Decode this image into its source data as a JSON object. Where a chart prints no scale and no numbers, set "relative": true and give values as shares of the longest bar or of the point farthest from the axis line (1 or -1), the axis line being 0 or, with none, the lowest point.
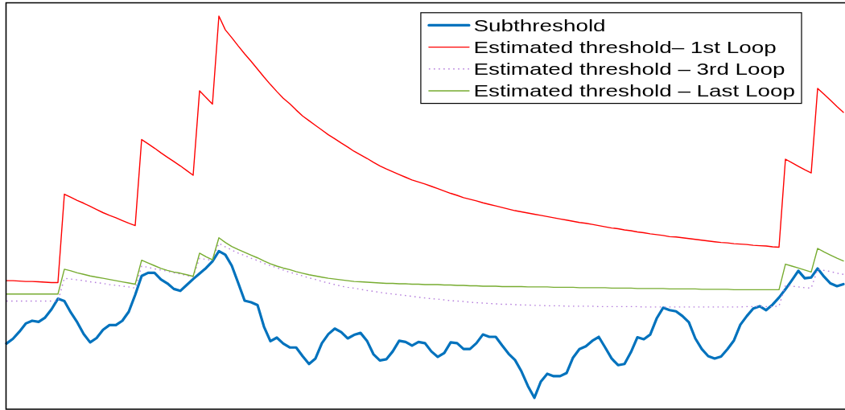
{
  "chart_data": {
    "type": "line",
    "relative": true,
    "legend": "top right",
    "categories": [
      null,
      null,
      null,
      null,
      null,
      null,
      null,
      null,
      null,
      null,
      null,
      null,
      null,
      null,
      null,
      null,
      null,
      null,
      null,
      null,
      null,
      null,
      null,
      null,
      null,
      null,
      null,
      null,
      null,
      null,
      null,
      null,
      null,
      null,
      null,
      null,
      null,
      null,
      null,
      null,
      null,
      null,
      null,
      null,
      null,
      null,
      null,
      null,
      null,
      null,
      null,
      null,
      null,
      null,
      null,
      null,
      null,
      null,
      null,
      null,
      null,
      null,
      null,
      null,
      null,
      null,
      null,
      null,
      null,
      null,
      null,
      null,
      null,
      null,
      null,
      null,
      null,
      null,
      null,
      null,
      null,
      null,
      null,
      null,
      null,
      null,
      null,
      null,
      null,
      null,
      null,
      null,
      null,
      null,
      null,
      null,
      null,
      null,
      null,
      null,
      null,
      null,
      null,
      null,
      null,
      null,
      null,
      null,
      null,
      null,
      null,
      null,
      null,
      null,
      null,
      null,
      null,
      null,
      null,
      null,
      null,
      null,
      null,
      null,
      null,
      null,
      null,
      null,
      null,
      null,
      null
    ],
    "series": [
      {
        "name": "Subthreshold",
        "color": "#0072bd",
        "line_style": "solid",
        "values": [
          0.167,
          0.179,
          0.197,
          0.218,
          0.225,
          0.222,
          0.233,
          0.254,
          0.281,
          0.275,
          0.246,
          0.221,
          0.191,
          0.17,
          0.181,
          0.202,
          0.214,
          0.214,
          0.225,
          0.248,
          0.291,
          0.339,
          0.347,
          0.347,
          0.33,
          0.32,
          0.306,
          0.301,
          0.316,
          0.331,
          0.345,
          0.359,
          0.376,
          0.402,
          0.393,
          0.365,
          0.321,
          0.276,
          0.272,
          0.265,
          0.21,
          0.173,
          0.182,
          0.167,
          0.157,
          0.157,
          0.135,
          0.115,
          0.129,
          0.168,
          0.191,
          0.205,
          0.196,
          0.18,
          0.189,
          0.194,
          0.174,
          0.14,
          0.124,
          0.127,
          0.147,
          0.174,
          0.171,
          0.162,
          0.171,
          0.168,
          0.147,
          0.133,
          0.143,
          0.17,
          0.168,
          0.153,
          0.153,
          0.168,
          0.19,
          0.184,
          0.184,
          0.162,
          0.141,
          0.125,
          0.096,
          0.059,
          0.029,
          0.07,
          0.09,
          0.084,
          0.084,
          0.092,
          0.131,
          0.153,
          0.16,
          0.174,
          0.184,
          0.157,
          0.129,
          0.112,
          0.115,
          0.145,
          0.183,
          0.178,
          0.19,
          0.231,
          0.258,
          0.252,
          0.249,
          0.237,
          0.221,
          0.18,
          0.153,
          0.135,
          0.129,
          0.134,
          0.153,
          0.175,
          0.215,
          0.237,
          0.256,
          0.262,
          0.252,
          0.266,
          0.284,
          0.305,
          0.328,
          0.352,
          0.333,
          0.335,
          0.358,
          0.337,
          0.32,
          0.313,
          0.318
        ]
      },
      {
        "name": "Estimated threshold– 1st Loop",
        "color": "#ff0000",
        "line_style": "solid",
        "values": [
          0.327,
          0.327,
          0.326,
          0.325,
          0.325,
          0.324,
          0.323,
          0.322,
          0.322,
          0.547,
          0.539,
          0.531,
          0.524,
          0.516,
          0.508,
          0.5,
          0.493,
          0.487,
          0.48,
          0.473,
          0.467,
          0.686,
          0.675,
          0.664,
          0.652,
          0.641,
          0.63,
          0.619,
          0.607,
          0.595,
          0.81,
          0.793,
          0.776,
          1,
          0.965,
          0.945,
          0.924,
          0.904,
          0.885,
          0.865,
          0.845,
          0.826,
          0.808,
          0.791,
          0.777,
          0.761,
          0.746,
          0.734,
          0.722,
          0.71,
          0.698,
          0.688,
          0.677,
          0.667,
          0.656,
          0.647,
          0.638,
          0.628,
          0.619,
          0.611,
          0.604,
          0.597,
          0.59,
          0.583,
          0.578,
          0.573,
          0.567,
          0.561,
          0.555,
          0.549,
          0.544,
          0.538,
          0.534,
          0.53,
          0.525,
          0.521,
          0.517,
          0.513,
          0.509,
          0.505,
          0.502,
          0.499,
          0.496,
          0.493,
          0.49,
          0.487,
          0.484,
          0.481,
          0.478,
          0.475,
          0.473,
          0.47,
          0.467,
          0.464,
          0.461,
          0.459,
          0.456,
          0.454,
          0.451,
          0.449,
          0.446,
          0.444,
          0.442,
          0.439,
          0.438,
          0.436,
          0.434,
          0.432,
          0.43,
          0.428,
          0.426,
          0.424,
          0.423,
          0.421,
          0.42,
          0.419,
          0.417,
          0.416,
          0.415,
          0.413,
          0.412,
          0.636,
          0.627,
          0.618,
          0.609,
          0.601,
          0.816,
          0.801,
          0.786,
          0.77,
          0.755
        ]
      },
      {
        "name": "Estimated threshold – 3rd Loop",
        "color": "#b57edc",
        "line_style": "dotted",
        "values": [
          0.275,
          0.275,
          0.275,
          0.275,
          0.275,
          0.275,
          0.275,
          0.275,
          0.275,
          0.333,
          0.331,
          0.329,
          0.327,
          0.324,
          0.322,
          0.32,
          0.317,
          0.315,
          0.313,
          0.311,
          0.308,
          0.364,
          0.361,
          0.357,
          0.354,
          0.351,
          0.347,
          0.344,
          0.34,
          0.337,
          0.384,
          0.381,
          0.379,
          0.422,
          0.413,
          0.405,
          0.397,
          0.391,
          0.384,
          0.378,
          0.371,
          0.365,
          0.36,
          0.354,
          0.348,
          0.344,
          0.339,
          0.334,
          0.33,
          0.325,
          0.321,
          0.317,
          0.313,
          0.31,
          0.308,
          0.305,
          0.302,
          0.3,
          0.297,
          0.295,
          0.293,
          0.291,
          0.289,
          0.287,
          0.285,
          0.283,
          0.281,
          0.28,
          0.278,
          0.276,
          0.275,
          0.274,
          0.272,
          0.271,
          0.27,
          0.269,
          0.268,
          0.267,
          0.267,
          0.266,
          0.265,
          0.265,
          0.264,
          0.264,
          0.263,
          0.263,
          0.263,
          0.262,
          0.262,
          0.262,
          0.262,
          0.262,
          0.261,
          0.261,
          0.261,
          0.261,
          0.261,
          0.261,
          0.261,
          0.26,
          0.26,
          0.26,
          0.26,
          0.26,
          0.26,
          0.26,
          0.26,
          0.26,
          0.26,
          0.26,
          0.26,
          0.26,
          0.26,
          0.26,
          0.26,
          0.261,
          0.261,
          0.261,
          0.261,
          0.261,
          0.262,
          0.315,
          0.313,
          0.311,
          0.309,
          0.308,
          0.356,
          0.353,
          0.35,
          0.346,
          0.343
        ]
      },
      {
        "name": "Estimated threshold – Last Loop",
        "color": "#77ac30",
        "line_style": "solid",
        "values": [
          0.293,
          0.293,
          0.293,
          0.293,
          0.293,
          0.293,
          0.293,
          0.293,
          0.293,
          0.356,
          0.352,
          0.347,
          0.343,
          0.339,
          0.336,
          0.333,
          0.33,
          0.327,
          0.324,
          0.321,
          0.318,
          0.379,
          0.372,
          0.365,
          0.358,
          0.353,
          0.349,
          0.346,
          0.342,
          0.338,
          0.397,
          0.388,
          0.38,
          0.436,
          0.424,
          0.414,
          0.406,
          0.399,
          0.392,
          0.385,
          0.377,
          0.37,
          0.364,
          0.359,
          0.355,
          0.35,
          0.346,
          0.342,
          0.339,
          0.336,
          0.333,
          0.331,
          0.329,
          0.327,
          0.325,
          0.324,
          0.323,
          0.322,
          0.321,
          0.32,
          0.32,
          0.319,
          0.319,
          0.318,
          0.318,
          0.317,
          0.317,
          0.317,
          0.316,
          0.316,
          0.315,
          0.315,
          0.314,
          0.314,
          0.313,
          0.313,
          0.313,
          0.312,
          0.312,
          0.312,
          0.312,
          0.311,
          0.311,
          0.311,
          0.311,
          0.31,
          0.31,
          0.31,
          0.31,
          0.309,
          0.309,
          0.309,
          0.309,
          0.309,
          0.308,
          0.308,
          0.308,
          0.308,
          0.307,
          0.307,
          0.307,
          0.307,
          0.307,
          0.306,
          0.306,
          0.306,
          0.306,
          0.306,
          0.305,
          0.305,
          0.305,
          0.305,
          0.305,
          0.304,
          0.304,
          0.304,
          0.304,
          0.304,
          0.304,
          0.304,
          0.304,
          0.369,
          0.364,
          0.359,
          0.354,
          0.349,
          0.409,
          0.4,
          0.392,
          0.384,
          0.377
        ]
      }
    ]
  }
}
